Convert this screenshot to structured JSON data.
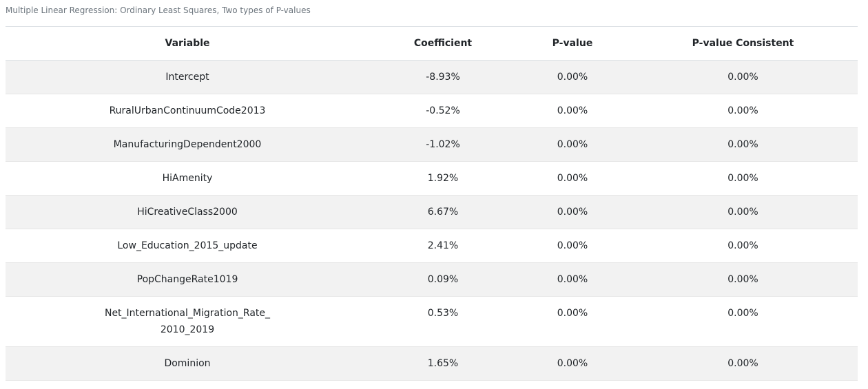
{
  "caption": "Multiple Linear Regression: Ordinary Least Squares, Two types of P-values",
  "table": {
    "header": [
      "Variable",
      "Coefficient",
      "P-value",
      "P-value Consistent"
    ],
    "rows": [
      [
        "Intercept",
        "-8.93%",
        "0.00%",
        "0.00%"
      ],
      [
        "RuralUrbanContinuumCode2013",
        "-0.52%",
        "0.00%",
        "0.00%"
      ],
      [
        "ManufacturingDependent2000",
        "-1.02%",
        "0.00%",
        "0.00%"
      ],
      [
        "HiAmenity",
        "1.92%",
        "0.00%",
        "0.00%"
      ],
      [
        "HiCreativeClass2000",
        "6.67%",
        "0.00%",
        "0.00%"
      ],
      [
        "Low_Education_2015_update",
        "2.41%",
        "0.00%",
        "0.00%"
      ],
      [
        "PopChangeRate1019",
        "0.09%",
        "0.00%",
        "0.00%"
      ],
      [
        "Net_International_Migration_Rate_2010_2019",
        "0.53%",
        "0.00%",
        "0.00%"
      ],
      [
        "Dominion",
        "1.65%",
        "0.00%",
        "0.00%"
      ]
    ]
  }
}
